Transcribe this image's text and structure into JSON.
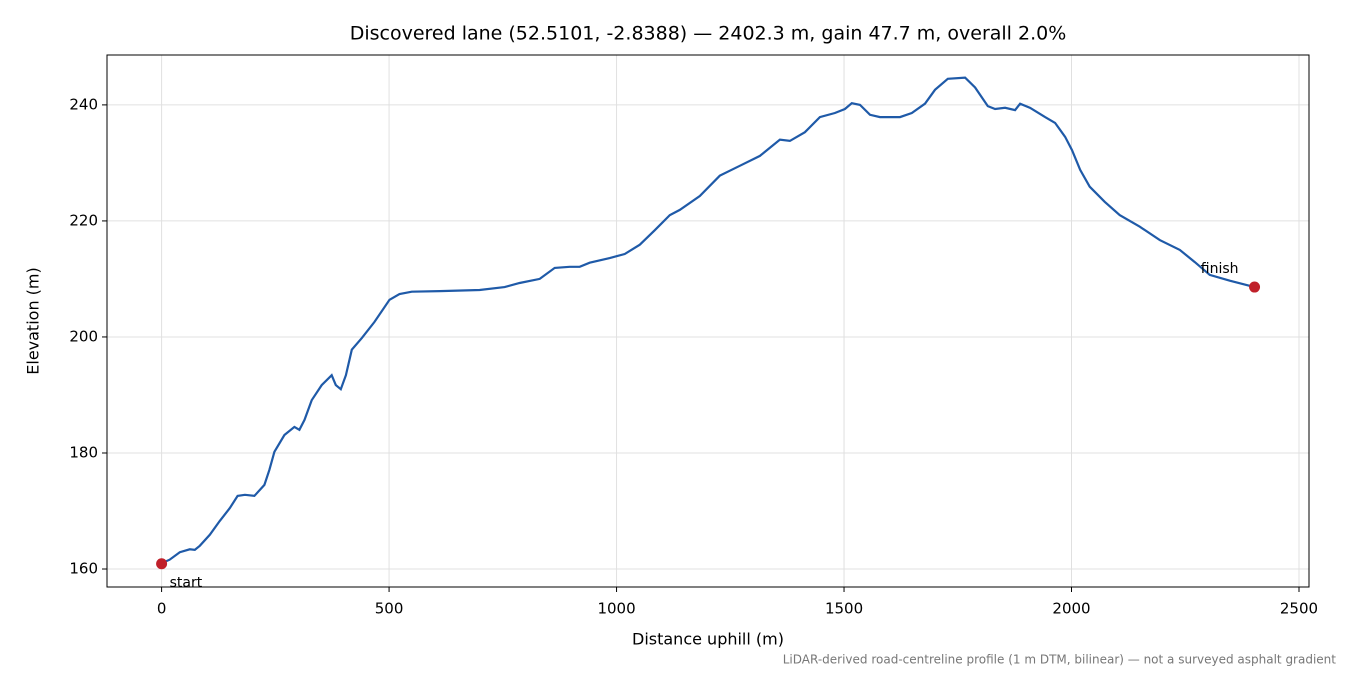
{
  "chart_data": {
    "type": "line",
    "title": "Discovered lane (52.5101, -2.8388) — 2402.3 m, gain 47.7 m, overall 2.0%",
    "xlabel": "Distance uphill (m)",
    "ylabel": "Elevation (m)",
    "note": "LiDAR-derived road-centreline profile (1 m DTM, bilinear) — not a surveyed asphalt gradient",
    "xlim": [
      -120,
      2522
    ],
    "ylim": [
      156.9,
      248.6
    ],
    "xticks": [
      0,
      500,
      1000,
      1500,
      2000,
      2500
    ],
    "yticks": [
      160,
      180,
      200,
      220,
      240
    ],
    "grid": true,
    "series": [
      {
        "color": "#1f5aa8",
        "x": [
          0,
          17.6,
          40,
          62,
          73,
          84,
          106,
          128,
          150,
          167,
          183,
          204,
          226,
          237,
          248,
          270,
          292,
          303,
          314,
          330,
          352,
          374,
          383,
          394,
          405,
          418,
          440,
          468,
          501,
          523,
          550,
          611,
          699,
          754,
          787,
          831,
          864,
          897,
          919,
          941,
          985,
          1018,
          1051,
          1084,
          1117,
          1139,
          1183,
          1227,
          1271,
          1315,
          1359,
          1381,
          1414,
          1447,
          1480,
          1502,
          1517,
          1535,
          1557,
          1579,
          1623,
          1649,
          1678,
          1700,
          1728,
          1766,
          1788,
          1816,
          1832,
          1854,
          1876,
          1887,
          1909,
          1942,
          1964,
          1986,
          2001,
          2019,
          2040,
          2073,
          2106,
          2150,
          2194,
          2238,
          2271,
          2304,
          2348,
          2402.3
        ],
        "values": [
          161.0,
          161.6,
          162.9,
          163.4,
          163.3,
          164,
          165.9,
          168.3,
          170.5,
          172.6,
          172.8,
          172.6,
          174.5,
          177.1,
          180.2,
          183.1,
          184.5,
          184,
          185.7,
          189.1,
          191.7,
          193.4,
          191.7,
          191,
          193.4,
          197.8,
          199.8,
          202.6,
          206.4,
          207.4,
          207.8,
          207.9,
          208.1,
          208.6,
          209.3,
          210.0,
          211.9,
          212.1,
          212.1,
          212.8,
          213.6,
          214.3,
          215.9,
          218.4,
          221,
          221.9,
          224.3,
          227.8,
          229.5,
          231.2,
          234,
          233.8,
          235.3,
          237.9,
          238.6,
          239.3,
          240.3,
          240,
          238.3,
          237.9,
          237.9,
          238.6,
          240.2,
          242.6,
          244.5,
          244.7,
          243,
          239.8,
          239.3,
          239.5,
          239.1,
          240.2,
          239.5,
          237.9,
          236.9,
          234.5,
          232.2,
          228.8,
          225.9,
          223.3,
          221,
          219,
          216.7,
          215,
          212.9,
          210.7,
          209.7,
          208.6
        ]
      }
    ],
    "markers": {
      "color": "#c0202a",
      "x": [
        0,
        2402.3
      ],
      "values": [
        160.9,
        208.6
      ],
      "labels": [
        "start",
        "finish"
      ]
    }
  }
}
